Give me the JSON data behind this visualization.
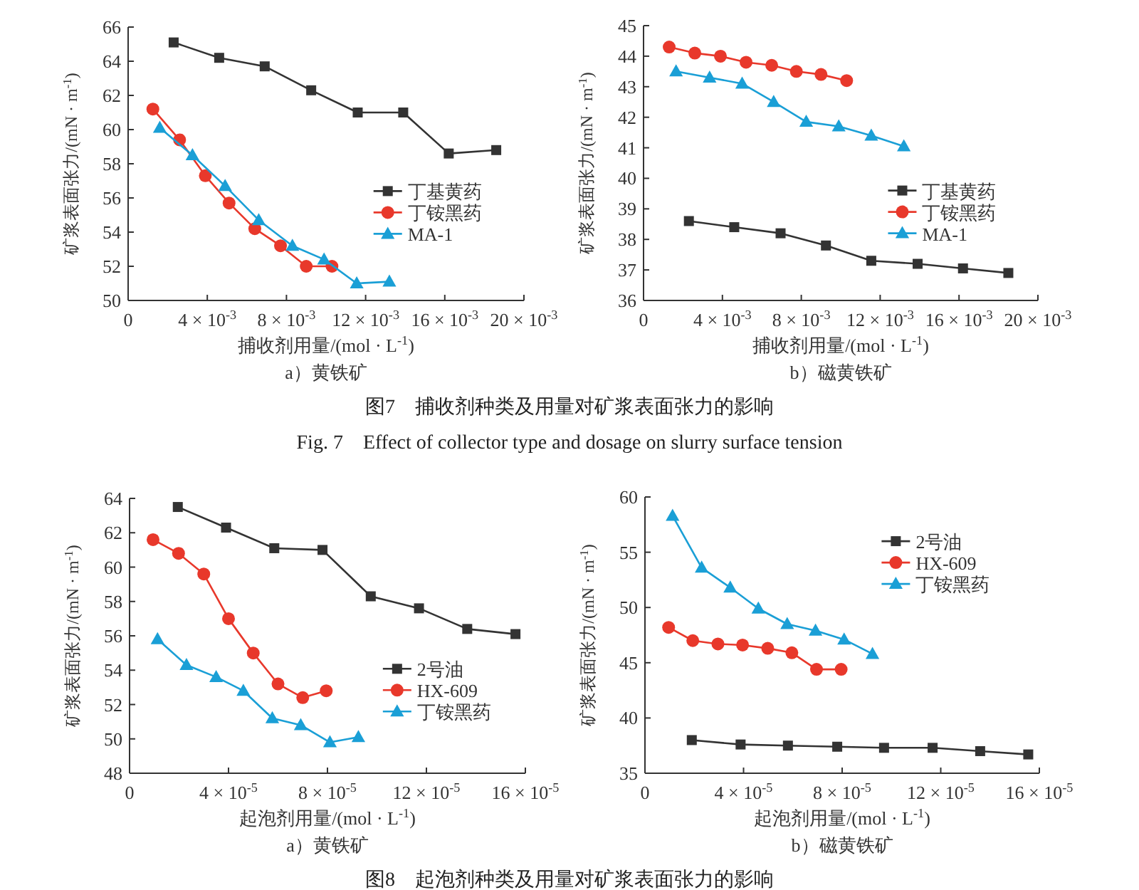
{
  "chart_data": [
    {
      "type": "line",
      "title": "a）黄铁矿",
      "xlabel": "捕收剂用量/(mol · L$^{-1}$)",
      "ylabel": "矿浆表面张力/(mN · m$^{-1}$)",
      "legend": "right",
      "xlim": [
        0,
        0.02
      ],
      "xticks": [
        {
          "value": 0,
          "label": "0"
        },
        {
          "value": 0.004,
          "label": "4 × 10$^{-3}$"
        },
        {
          "value": 0.008,
          "label": "8 × 10$^{-3}$"
        },
        {
          "value": 0.012,
          "label": "12 × 10$^{-3}$"
        },
        {
          "value": 0.016,
          "label": "16 × 10$^{-3}$"
        },
        {
          "value": 0.02,
          "label": "20 × 10$^{-3}$"
        }
      ],
      "ylim": [
        50,
        66
      ],
      "yticks": [
        50,
        52,
        54,
        56,
        58,
        60,
        62,
        64,
        66
      ],
      "series": [
        {
          "name": "丁基黄药",
          "color": "#333333",
          "marker": "square",
          "x": [
            0.0023,
            0.0046,
            0.0069,
            0.00925,
            0.0116,
            0.0139,
            0.0162,
            0.0186
          ],
          "values": [
            65.1,
            64.2,
            63.7,
            62.3,
            61.0,
            61.0,
            58.6,
            58.8
          ]
        },
        {
          "name": "丁铵黑药",
          "color": "#e8382b",
          "marker": "circle",
          "x": [
            0.00125,
            0.0026,
            0.0039,
            0.0051,
            0.0064,
            0.0077,
            0.009,
            0.0103
          ],
          "values": [
            61.2,
            59.4,
            57.3,
            55.7,
            54.2,
            53.2,
            52.0,
            52.0
          ]
        },
        {
          "name": "MA-1",
          "color": "#1a9fd6",
          "marker": "triangle",
          "x": [
            0.0016,
            0.00325,
            0.0049,
            0.0066,
            0.0083,
            0.0099,
            0.01155,
            0.0132
          ],
          "values": [
            60.1,
            58.5,
            56.7,
            54.7,
            53.2,
            52.4,
            51.0,
            51.1
          ]
        }
      ]
    },
    {
      "type": "line",
      "title": "b）磁黄铁矿",
      "xlabel": "捕收剂用量/(mol · L$^{-1}$)",
      "ylabel": "矿浆表面张力/(mN · m$^{-1}$)",
      "legend": "right",
      "xlim": [
        0,
        0.02
      ],
      "xticks": [
        {
          "value": 0,
          "label": "0"
        },
        {
          "value": 0.004,
          "label": "4 × 10$^{-3}$"
        },
        {
          "value": 0.008,
          "label": "8 × 10$^{-3}$"
        },
        {
          "value": 0.012,
          "label": "12 × 10$^{-3}$"
        },
        {
          "value": 0.016,
          "label": "16 × 10$^{-3}$"
        },
        {
          "value": 0.02,
          "label": "20 × 10$^{-3}$"
        }
      ],
      "ylim": [
        36,
        45
      ],
      "yticks": [
        36,
        37,
        38,
        39,
        40,
        41,
        42,
        43,
        44,
        45
      ],
      "annotations": [
        "图7　捕收剂种类及用量对矿浆表面张力的影响",
        "Fig. 7　Effect of collector type and dosage on slurry surface tension"
      ],
      "series": [
        {
          "name": "丁基黄药",
          "color": "#333333",
          "marker": "square",
          "x": [
            0.0023,
            0.0046,
            0.00695,
            0.00925,
            0.01155,
            0.0139,
            0.0162,
            0.0185
          ],
          "values": [
            38.6,
            38.4,
            38.2,
            37.8,
            37.3,
            37.2,
            37.05,
            36.9
          ]
        },
        {
          "name": "丁铵黑药",
          "color": "#e8382b",
          "marker": "circle",
          "x": [
            0.0013,
            0.0026,
            0.0039,
            0.0052,
            0.0065,
            0.00775,
            0.009,
            0.0103
          ],
          "values": [
            44.3,
            44.1,
            44.0,
            43.8,
            43.7,
            43.5,
            43.4,
            43.2
          ]
        },
        {
          "name": "MA-1",
          "color": "#1a9fd6",
          "marker": "triangle",
          "x": [
            0.00165,
            0.00335,
            0.005,
            0.0066,
            0.00825,
            0.0099,
            0.01155,
            0.0132
          ],
          "values": [
            43.5,
            43.3,
            43.1,
            42.5,
            41.85,
            41.7,
            41.4,
            41.05
          ]
        }
      ]
    },
    {
      "type": "line",
      "title": "a）黄铁矿",
      "xlabel": "起泡剂用量/(mol · L$^{-1}$)",
      "ylabel": "矿浆表面张力/(mN · m$^{-1}$)",
      "legend": "bottom right",
      "xlim": [
        0,
        0.00016
      ],
      "xticks": [
        {
          "value": 0,
          "label": "0"
        },
        {
          "value": 4e-05,
          "label": "4 × 10$^{-5}$"
        },
        {
          "value": 8e-05,
          "label": "8 × 10$^{-5}$"
        },
        {
          "value": 0.00012,
          "label": "12 × 10$^{-5}$"
        },
        {
          "value": 0.00016,
          "label": "16 × 10$^{-5}$"
        }
      ],
      "ylim": [
        48,
        64
      ],
      "yticks": [
        48,
        50,
        52,
        54,
        56,
        58,
        60,
        62,
        64
      ],
      "series": [
        {
          "name": "2号油",
          "color": "#333333",
          "marker": "square",
          "x": [
            1.95e-05,
            3.9e-05,
            5.85e-05,
            7.8e-05,
            9.75e-05,
            0.000117,
            0.0001365,
            0.000156
          ],
          "values": [
            63.5,
            62.3,
            61.1,
            61.0,
            58.3,
            57.6,
            56.4,
            56.1
          ]
        },
        {
          "name": "HX-609",
          "color": "#e8382b",
          "marker": "circle",
          "x": [
            9.5e-06,
            1.98e-05,
            3e-05,
            4e-05,
            5e-05,
            6e-05,
            7e-05,
            7.95e-05
          ],
          "values": [
            61.6,
            60.8,
            59.6,
            57.0,
            55.0,
            53.2,
            52.4,
            52.8
          ]
        },
        {
          "name": "丁铵黑药",
          "color": "#1a9fd6",
          "marker": "triangle",
          "x": [
            1.13e-05,
            2.3e-05,
            3.5e-05,
            4.6e-05,
            5.77e-05,
            6.92e-05,
            8.1e-05,
            9.25e-05
          ],
          "values": [
            55.8,
            54.3,
            53.6,
            52.8,
            51.2,
            50.8,
            49.8,
            50.1
          ]
        }
      ]
    },
    {
      "type": "line",
      "title": "b）磁黄铁矿",
      "xlabel": "起泡剂用量/(mol · L$^{-1}$)",
      "ylabel": "矿浆表面张力/(mN · m$^{-1}$)",
      "legend": "top right",
      "xlim": [
        0,
        0.00016
      ],
      "xticks": [
        {
          "value": 0,
          "label": "0"
        },
        {
          "value": 4e-05,
          "label": "4 × 10$^{-5}$"
        },
        {
          "value": 8e-05,
          "label": "8 × 10$^{-5}$"
        },
        {
          "value": 0.00012,
          "label": "12 × 10$^{-5}$"
        },
        {
          "value": 0.00016,
          "label": "16 × 10$^{-5}$"
        }
      ],
      "ylim": [
        35,
        60
      ],
      "yticks": [
        35,
        40,
        45,
        50,
        55,
        60
      ],
      "annotations": [
        "图8　起泡剂种类及用量对矿浆表面张力的影响"
      ],
      "series": [
        {
          "name": "2号油",
          "color": "#333333",
          "marker": "square",
          "x": [
            1.9e-05,
            3.88e-05,
            5.8e-05,
            7.8e-05,
            9.7e-05,
            0.0001167,
            0.000136,
            0.0001555
          ],
          "values": [
            38.0,
            37.6,
            37.5,
            37.4,
            37.3,
            37.3,
            37.0,
            36.7
          ]
        },
        {
          "name": "HX-609",
          "color": "#e8382b",
          "marker": "circle",
          "x": [
            9.6e-06,
            1.94e-05,
            2.96e-05,
            3.96e-05,
            4.98e-05,
            5.96e-05,
            6.96e-05,
            7.96e-05
          ],
          "values": [
            48.2,
            47.0,
            46.7,
            46.6,
            46.3,
            45.9,
            44.4,
            44.4
          ]
        },
        {
          "name": "丁铵黑药",
          "color": "#1a9fd6",
          "marker": "triangle",
          "x": [
            1.12e-05,
            2.3e-05,
            3.46e-05,
            4.6e-05,
            5.77e-05,
            6.92e-05,
            8.08e-05,
            9.23e-05
          ],
          "values": [
            58.3,
            53.6,
            51.8,
            49.9,
            48.5,
            47.9,
            47.1,
            45.8
          ]
        }
      ]
    }
  ]
}
